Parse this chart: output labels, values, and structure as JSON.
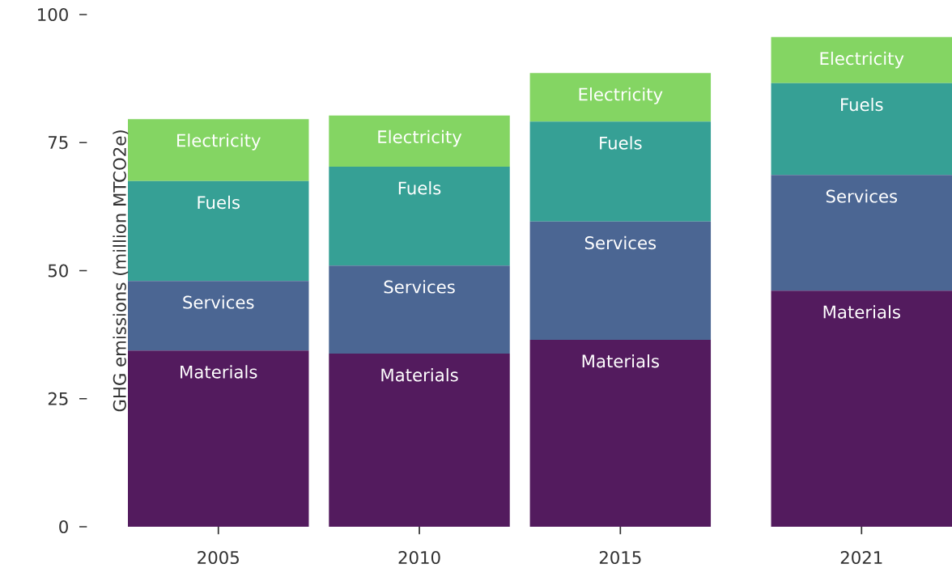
{
  "chart_data": {
    "type": "bar",
    "stacked": true,
    "ylabel": "GHG emissions (million MTCO2e)",
    "x": [
      2005,
      2010,
      2015,
      2021
    ],
    "series": [
      {
        "name": "Materials",
        "color": "#531b5e",
        "values": [
          34.4,
          33.8,
          36.5,
          46.1
        ]
      },
      {
        "name": "Services",
        "color": "#4b6693",
        "values": [
          13.6,
          17.2,
          23.1,
          22.6
        ]
      },
      {
        "name": "Fuels",
        "color": "#36a095",
        "values": [
          19.5,
          19.3,
          19.5,
          17.9
        ]
      },
      {
        "name": "Electricity",
        "color": "#84d563",
        "values": [
          12.1,
          10.0,
          9.5,
          9.0
        ]
      }
    ],
    "xlim": [
      2002.75,
      2023.25
    ],
    "xticks": [
      2005,
      2010,
      2015,
      2021
    ],
    "ylim": [
      0,
      100
    ],
    "yticks": [
      0,
      25,
      50,
      75,
      100
    ],
    "grid": false,
    "legend": false
  }
}
